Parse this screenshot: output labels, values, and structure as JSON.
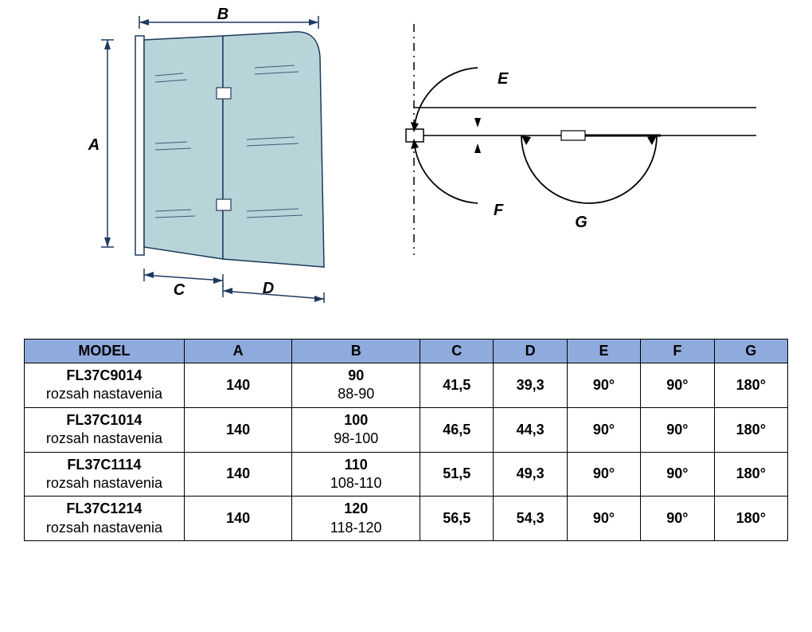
{
  "diagram_left": {
    "labels": {
      "A": "A",
      "B": "B",
      "C": "C",
      "D": "D"
    },
    "colors": {
      "glass_fill": "#b9d4d8",
      "stroke": "#1f3a5f",
      "hatch": "#3a5a7a"
    }
  },
  "diagram_right": {
    "labels": {
      "E": "E",
      "F": "F",
      "G": "G"
    }
  },
  "table": {
    "headers": [
      "MODEL",
      "A",
      "B",
      "C",
      "D",
      "E",
      "F",
      "G"
    ],
    "rows": [
      {
        "model": "FL37C9014",
        "sub": "rozsah nastavenia",
        "A": "140",
        "B": "90",
        "Bsub": "88-90",
        "C": "41,5",
        "D": "39,3",
        "E": "90°",
        "F": "90°",
        "G": "180°"
      },
      {
        "model": "FL37C1014",
        "sub": "rozsah nastavenia",
        "A": "140",
        "B": "100",
        "Bsub": "98-100",
        "C": "46,5",
        "D": "44,3",
        "E": "90°",
        "F": "90°",
        "G": "180°"
      },
      {
        "model": "FL37C1114",
        "sub": "rozsah nastavenia",
        "A": "140",
        "B": "110",
        "Bsub": "108-110",
        "C": "51,5",
        "D": "49,3",
        "E": "90°",
        "F": "90°",
        "G": "180°"
      },
      {
        "model": "FL37C1214",
        "sub": "rozsah nastavenia",
        "A": "140",
        "B": "120",
        "Bsub": "118-120",
        "C": "56,5",
        "D": "54,3",
        "E": "90°",
        "F": "90°",
        "G": "180°"
      }
    ],
    "header_bg": "#8faadc",
    "border_color": "#000000",
    "font_size": 18
  }
}
